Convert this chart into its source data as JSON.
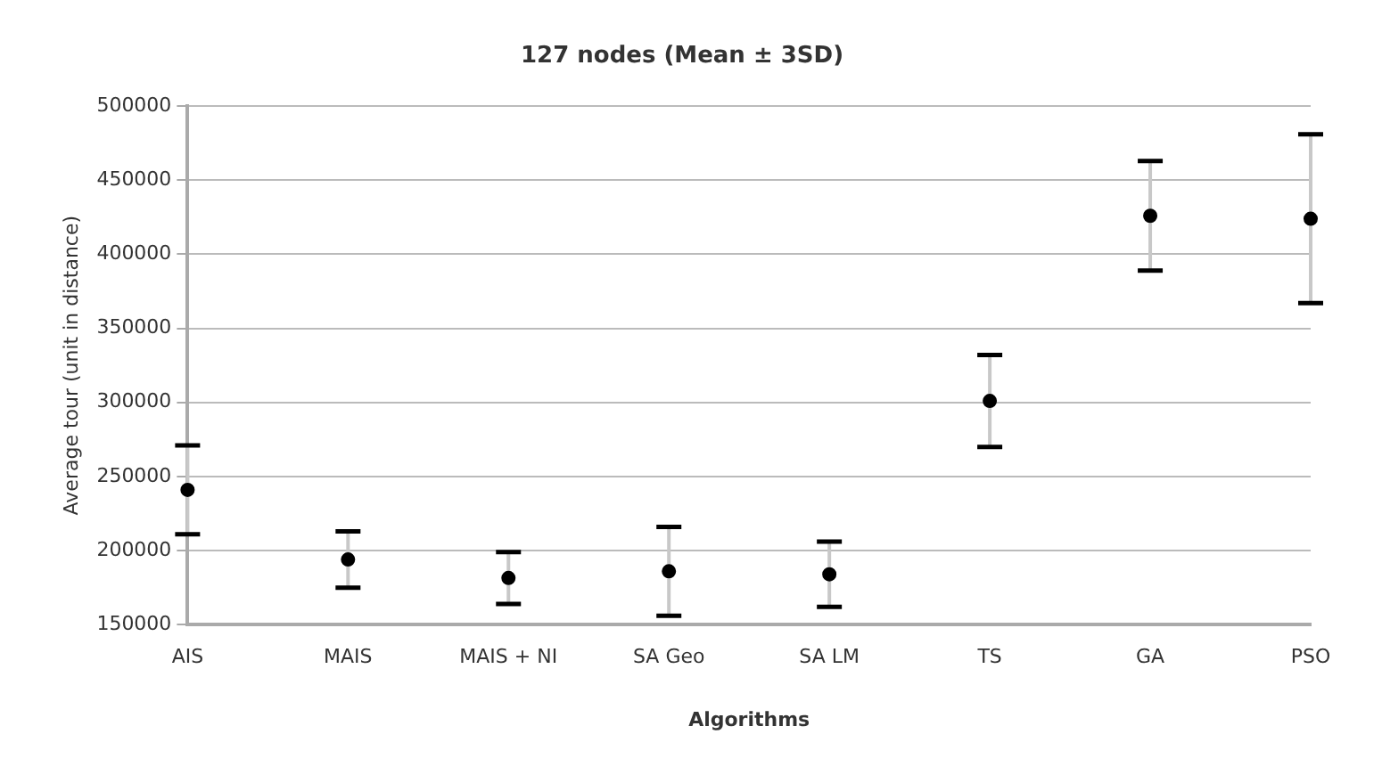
{
  "chart_data": {
    "type": "scatter",
    "title": "127 nodes (Mean ± 3SD)",
    "xlabel": "Algorithms",
    "ylabel": "Average tour (unit in distance)",
    "categories": [
      "AIS",
      "MAIS",
      "MAIS + NI",
      "SA Geo",
      "SA LM",
      "TS",
      "GA",
      "PSO"
    ],
    "values": [
      241000,
      194000,
      181500,
      186000,
      184000,
      301000,
      426000,
      424000
    ],
    "errors": [
      30000,
      19000,
      17500,
      30000,
      22000,
      31000,
      37000,
      57000
    ],
    "color": "#000000",
    "marker": "circle",
    "ylim": [
      150000,
      500000
    ],
    "yticks": [
      150000,
      200000,
      250000,
      300000,
      350000,
      400000,
      450000,
      500000
    ],
    "grid": "y",
    "legend": false
  }
}
